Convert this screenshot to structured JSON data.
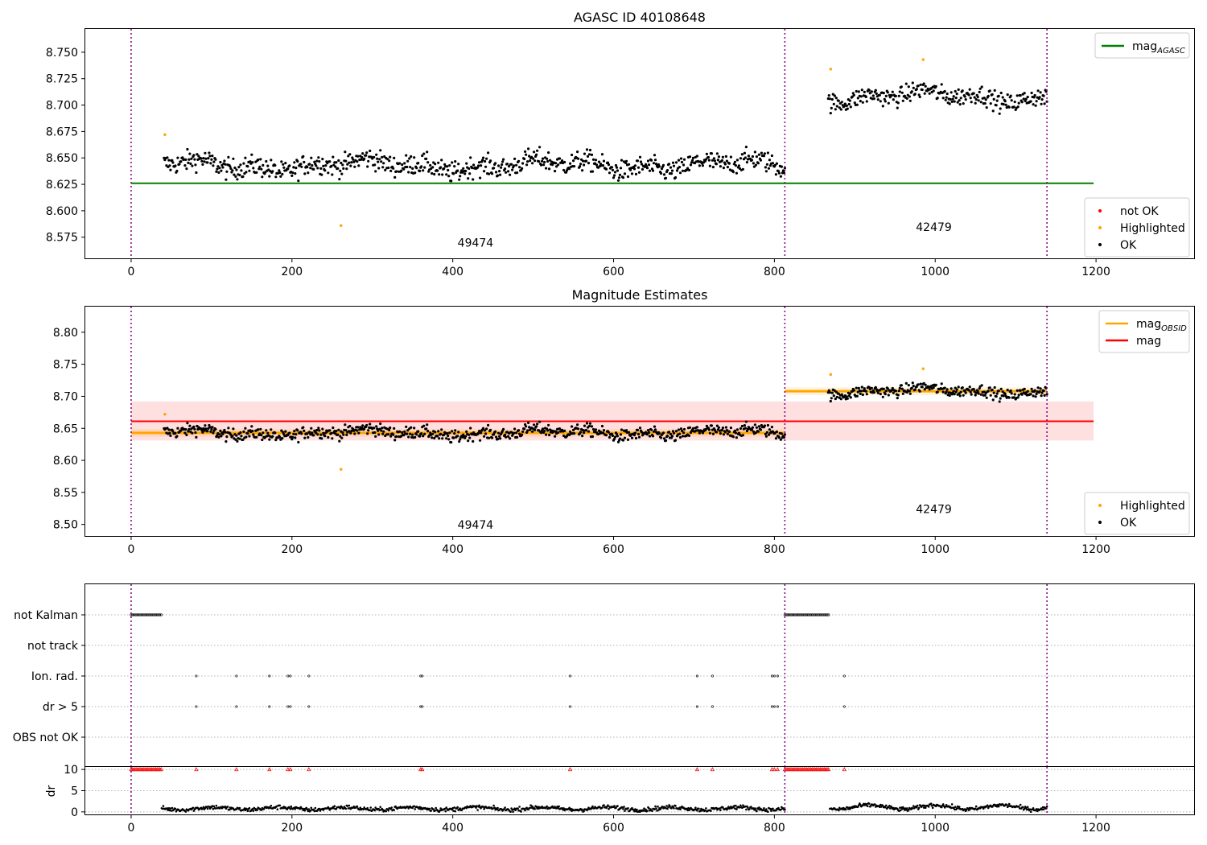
{
  "figure": {
    "title_top": "AGASC ID 40108648",
    "title_middle": "Magnitude Estimates"
  },
  "chart_data": [
    {
      "type": "scatter",
      "title": "AGASC ID 40108648",
      "xlim": [
        -57,
        1322
      ],
      "ylim": [
        8.555,
        8.772
      ],
      "xticks": [
        0,
        200,
        400,
        600,
        800,
        1000,
        1200
      ],
      "yticks": [
        8.575,
        8.6,
        8.625,
        8.65,
        8.675,
        8.7,
        8.725,
        8.75
      ],
      "ytick_labels": [
        "8.575",
        "8.600",
        "8.625",
        "8.650",
        "8.675",
        "8.700",
        "8.725",
        "8.750"
      ],
      "obsid_boundaries": [
        0,
        813,
        1139
      ],
      "obsid_labels": [
        {
          "x": 406,
          "y": 8.566,
          "text": "49474"
        },
        {
          "x": 976,
          "y": 8.581,
          "text": "42479"
        }
      ],
      "mag_agasc": 8.626,
      "mag_agasc_range": [
        0,
        1197
      ],
      "segments": [
        {
          "x_start": 41,
          "x_end": 813,
          "mean": 8.643,
          "scatter": 0.009
        },
        {
          "x_start": 867,
          "x_end": 1139,
          "mean": 8.708,
          "scatter": 0.008
        }
      ],
      "highlighted_points": [
        {
          "x": 42,
          "y": 8.672
        },
        {
          "x": 261,
          "y": 8.586
        },
        {
          "x": 870,
          "y": 8.734
        },
        {
          "x": 985,
          "y": 8.743
        }
      ],
      "not_ok_points": [],
      "legend_upper": [
        {
          "label": "mag",
          "subscript": "AGASC",
          "color": "#008000"
        }
      ],
      "legend_lower": [
        {
          "label": "not OK",
          "color": "#ff0000"
        },
        {
          "label": "Highlighted",
          "color": "#ffa500"
        },
        {
          "label": "OK",
          "color": "#000000"
        }
      ]
    },
    {
      "type": "scatter",
      "title": "Magnitude Estimates",
      "xlim": [
        -57,
        1322
      ],
      "ylim": [
        8.482,
        8.84
      ],
      "xticks": [
        0,
        200,
        400,
        600,
        800,
        1000,
        1200
      ],
      "yticks": [
        8.5,
        8.55,
        8.6,
        8.65,
        8.7,
        8.75,
        8.8
      ],
      "ytick_labels": [
        "8.50",
        "8.55",
        "8.60",
        "8.65",
        "8.70",
        "8.75",
        "8.80"
      ],
      "obsid_boundaries": [
        0,
        813,
        1139
      ],
      "obsid_labels": [
        {
          "x": 406,
          "y": 8.493,
          "text": "49474"
        },
        {
          "x": 976,
          "y": 8.518,
          "text": "42479"
        }
      ],
      "mag": 8.661,
      "mag_band": [
        8.631,
        8.692
      ],
      "mag_range": [
        0,
        1197
      ],
      "mag_obsid": [
        {
          "x_start": 0,
          "x_end": 813,
          "value": 8.643
        },
        {
          "x_start": 813,
          "x_end": 1139,
          "value": 8.708
        }
      ],
      "highlighted_points": [
        {
          "x": 42,
          "y": 8.672
        },
        {
          "x": 261,
          "y": 8.586
        },
        {
          "x": 870,
          "y": 8.734
        },
        {
          "x": 985,
          "y": 8.743
        }
      ],
      "legend_upper": [
        {
          "label": "mag",
          "subscript": "OBSID",
          "color": "#ffa500"
        },
        {
          "label": "mag",
          "subscript": "",
          "color": "#ff0000"
        }
      ],
      "legend_lower": [
        {
          "label": "Highlighted",
          "color": "#ffa500"
        },
        {
          "label": "OK",
          "color": "#000000"
        }
      ]
    },
    {
      "type": "scatter",
      "title": "",
      "xlim": [
        -57,
        1322
      ],
      "xticks": [
        0,
        200,
        400,
        600,
        800,
        1000,
        1200
      ],
      "flag_rows": [
        "not Kalman",
        "not track",
        "Ion. rad.",
        "dr > 5",
        "OBS not OK"
      ],
      "obsid_boundaries": [
        0,
        813,
        1139
      ],
      "not_kalman_ranges": [
        [
          0,
          38
        ],
        [
          813,
          869
        ]
      ],
      "ion_rad_points": [
        81,
        131,
        172,
        195,
        198,
        221,
        360,
        362,
        546,
        704,
        723,
        797,
        800,
        804,
        887
      ],
      "dr_gt5_points": [
        81,
        131,
        172,
        195,
        198,
        221,
        360,
        362,
        546,
        704,
        723,
        797,
        800,
        804,
        887
      ],
      "obs_not_ok_points": [],
      "dr_ylabel": "dr",
      "dr_ylim": [
        -0.6,
        10.6
      ],
      "dr_yticks": [
        0,
        5,
        10
      ],
      "dr_segments": [
        {
          "x_start": 38,
          "x_end": 813,
          "base": 0.8,
          "amp": 0.3
        },
        {
          "x_start": 869,
          "x_end": 1139,
          "base": 1.1,
          "amp": 0.5
        }
      ],
      "dr_cap": 10
    }
  ]
}
